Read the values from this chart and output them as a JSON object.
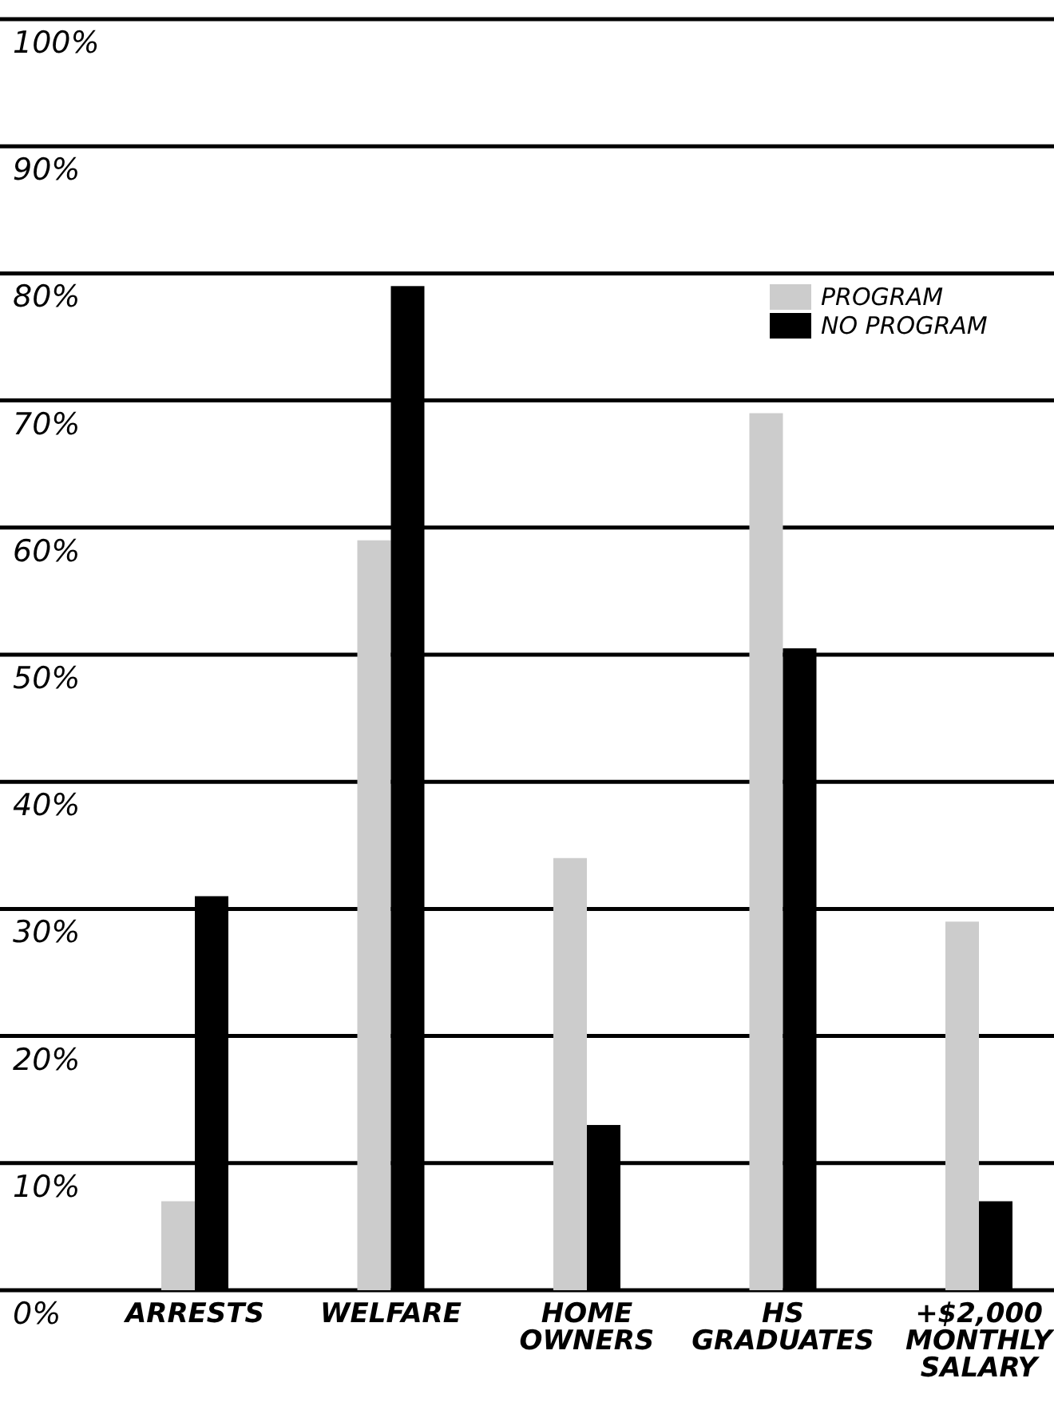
{
  "chart_data": {
    "type": "bar",
    "categories": [
      "ARRESTS",
      "WELFARE",
      "HOME OWNERS",
      "HS GRADUATES",
      "+$2,000 MONTHLY SALARY"
    ],
    "series": [
      {
        "name": "PROGRAM",
        "color": "#cccccc",
        "values": [
          7,
          59,
          34,
          69,
          29
        ]
      },
      {
        "name": "NO PROGRAM",
        "color": "#000000",
        "values": [
          31,
          79,
          13,
          50.5,
          7
        ]
      }
    ],
    "ylim": [
      0,
      100
    ],
    "yticks": [
      {
        "value": 0,
        "label": "0%"
      },
      {
        "value": 10,
        "label": "10%"
      },
      {
        "value": 20,
        "label": "20%"
      },
      {
        "value": 30,
        "label": "30%"
      },
      {
        "value": 40,
        "label": "40%"
      },
      {
        "value": 50,
        "label": "50%"
      },
      {
        "value": 60,
        "label": "60%"
      },
      {
        "value": 70,
        "label": "70%"
      },
      {
        "value": 80,
        "label": "80%"
      },
      {
        "value": 90,
        "label": "90%"
      },
      {
        "value": 100,
        "label": "100%"
      }
    ],
    "grid": "y",
    "legend": "top right"
  }
}
